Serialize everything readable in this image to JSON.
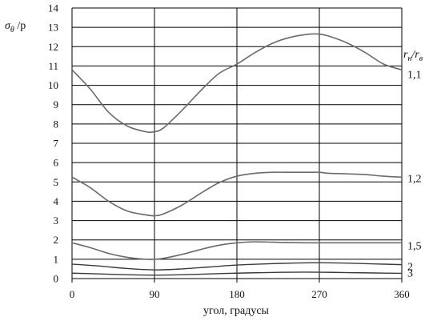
{
  "chart_data": {
    "type": "line",
    "title": "",
    "xlabel": "угол, градусы",
    "ylabel": "σθ /p",
    "ylabel_main": "σ",
    "ylabel_sub": "θ",
    "ylabel_rest": " /p",
    "xlim": [
      0,
      360
    ],
    "ylim": [
      0,
      14
    ],
    "x_ticks": [
      0,
      90,
      180,
      270,
      360
    ],
    "y_ticks": [
      0,
      1,
      2,
      3,
      4,
      5,
      6,
      7,
      8,
      9,
      10,
      11,
      12,
      13,
      14
    ],
    "grid": true,
    "legend_title": "rн/rв",
    "legend_title_r1": "r",
    "legend_title_s1": "н",
    "legend_title_r2": "/r",
    "legend_title_s2": "в",
    "series": [
      {
        "name": "1,1",
        "x": [
          0,
          20,
          40,
          60,
          80,
          90,
          100,
          120,
          140,
          160,
          180,
          200,
          220,
          240,
          260,
          270,
          280,
          300,
          320,
          340,
          360
        ],
        "y": [
          10.8,
          9.8,
          8.6,
          7.9,
          7.6,
          7.6,
          7.8,
          8.7,
          9.7,
          10.6,
          11.1,
          11.7,
          12.2,
          12.5,
          12.65,
          12.65,
          12.55,
          12.2,
          11.7,
          11.1,
          10.8
        ]
      },
      {
        "name": "1,2",
        "x": [
          0,
          20,
          40,
          60,
          80,
          90,
          100,
          120,
          140,
          160,
          180,
          200,
          220,
          240,
          260,
          270,
          280,
          300,
          320,
          340,
          360
        ],
        "y": [
          5.25,
          4.7,
          4.0,
          3.5,
          3.3,
          3.25,
          3.35,
          3.8,
          4.4,
          4.95,
          5.3,
          5.45,
          5.5,
          5.5,
          5.5,
          5.5,
          5.45,
          5.42,
          5.38,
          5.3,
          5.25
        ]
      },
      {
        "name": "1,5",
        "x": [
          0,
          20,
          40,
          60,
          80,
          90,
          100,
          120,
          140,
          160,
          180,
          200,
          220,
          240,
          260,
          270,
          280,
          300,
          320,
          340,
          360
        ],
        "y": [
          1.85,
          1.6,
          1.3,
          1.1,
          1.0,
          1.0,
          1.05,
          1.25,
          1.5,
          1.72,
          1.85,
          1.9,
          1.88,
          1.86,
          1.85,
          1.85,
          1.85,
          1.85,
          1.85,
          1.85,
          1.85
        ]
      },
      {
        "name": "2",
        "x": [
          0,
          30,
          60,
          90,
          120,
          150,
          180,
          210,
          240,
          270,
          300,
          330,
          360
        ],
        "y": [
          0.75,
          0.65,
          0.52,
          0.45,
          0.5,
          0.6,
          0.7,
          0.76,
          0.8,
          0.82,
          0.8,
          0.76,
          0.72
        ]
      },
      {
        "name": "3",
        "x": [
          0,
          30,
          60,
          90,
          120,
          150,
          180,
          210,
          240,
          270,
          300,
          330,
          360
        ],
        "y": [
          0.28,
          0.24,
          0.2,
          0.18,
          0.2,
          0.24,
          0.28,
          0.31,
          0.33,
          0.33,
          0.31,
          0.29,
          0.27
        ]
      }
    ]
  }
}
